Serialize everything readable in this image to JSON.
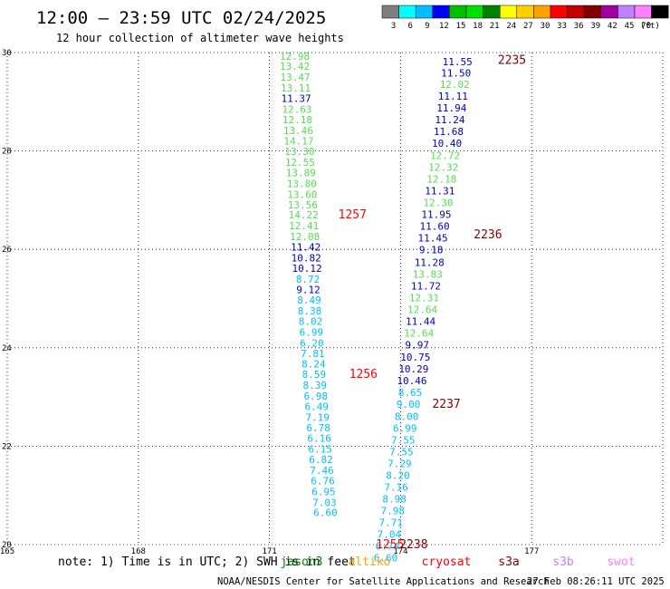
{
  "header": {
    "title": "12:00 — 23:59 UTC 02/24/2025",
    "subtitle": "12 hour collection of altimeter wave heights"
  },
  "legend": {
    "unit": "(ft)",
    "bins": [
      {
        "label": "3",
        "color": "#7f7f7f"
      },
      {
        "label": "6",
        "color": "#00ffff"
      },
      {
        "label": "9",
        "color": "#00bfff"
      },
      {
        "label": "12",
        "color": "#0000ff"
      },
      {
        "label": "15",
        "color": "#00c000"
      },
      {
        "label": "18",
        "color": "#00e000"
      },
      {
        "label": "21",
        "color": "#008000"
      },
      {
        "label": "24",
        "color": "#ffff00"
      },
      {
        "label": "27",
        "color": "#ffd000"
      },
      {
        "label": "30",
        "color": "#ffa000"
      },
      {
        "label": "33",
        "color": "#ff0000"
      },
      {
        "label": "36",
        "color": "#c00000"
      },
      {
        "label": "39",
        "color": "#800000"
      },
      {
        "label": "42",
        "color": "#a000a0"
      },
      {
        "label": "45",
        "color": "#c080ff"
      },
      {
        "label": "70",
        "color": "#ff80ff"
      },
      {
        "label": "",
        "color": "#000000"
      }
    ]
  },
  "satellites": [
    {
      "name": "jason3",
      "color": "#008000"
    },
    {
      "name": "altiko",
      "color": "#ffa000"
    },
    {
      "name": "cryosat",
      "color": "#ff0000"
    },
    {
      "name": "s3a",
      "color": "#800000"
    },
    {
      "name": "s3b",
      "color": "#c080ff"
    },
    {
      "name": "swot",
      "color": "#ff80ff"
    }
  ],
  "footer": {
    "note": "note: 1) Time is in UTC; 2) SWH is in feet",
    "credit": "NOAA/NESDIS Center for Satellite Applications and Research",
    "timestamp": "27 Feb 08:26:11 UTC 2025"
  },
  "chart_data": {
    "type": "scatter",
    "title": "12:00 — 23:59 UTC 02/24/2025",
    "subtitle": "12 hour collection of altimeter wave heights",
    "xlim": [
      165,
      180
    ],
    "ylim": [
      20,
      30
    ],
    "xticks": [
      165,
      168,
      171,
      174,
      177
    ],
    "yticks": [
      20,
      22,
      24,
      26,
      28,
      30
    ],
    "grid": true,
    "colors": {
      "c6": "#00bfff",
      "c9": "#0000c0",
      "c12": "#55dd55",
      "time": "#ff0000",
      "time2": "#800000"
    },
    "series": [
      {
        "name": "cryosat",
        "points": [
          {
            "x": 171.58,
            "y": 29.93,
            "v": "12.98",
            "c": "c12"
          },
          {
            "x": 171.58,
            "y": 29.72,
            "v": "13.42",
            "c": "c12"
          },
          {
            "x": 171.59,
            "y": 29.5,
            "v": "13.47",
            "c": "c12"
          },
          {
            "x": 171.6,
            "y": 29.28,
            "v": "13.11",
            "c": "c12"
          },
          {
            "x": 171.61,
            "y": 29.07,
            "v": "11.37",
            "c": "c9"
          },
          {
            "x": 171.63,
            "y": 28.85,
            "v": "12.63",
            "c": "c12"
          },
          {
            "x": 171.64,
            "y": 28.64,
            "v": "12.18",
            "c": "c12"
          },
          {
            "x": 171.66,
            "y": 28.42,
            "v": "13.46",
            "c": "c12"
          },
          {
            "x": 171.67,
            "y": 28.2,
            "v": "14.17",
            "c": "c12"
          },
          {
            "x": 171.69,
            "y": 27.99,
            "v": "13.30",
            "c": "c12"
          },
          {
            "x": 171.7,
            "y": 27.77,
            "v": "12.55",
            "c": "c12"
          },
          {
            "x": 171.72,
            "y": 27.56,
            "v": "13.89",
            "c": "c12"
          },
          {
            "x": 171.74,
            "y": 27.34,
            "v": "13.80",
            "c": "c12"
          },
          {
            "x": 171.75,
            "y": 27.12,
            "v": "13.60",
            "c": "c12"
          },
          {
            "x": 171.76,
            "y": 26.91,
            "v": "13.56",
            "c": "c12"
          },
          {
            "x": 171.78,
            "y": 26.7,
            "v": "14.22",
            "c": "c12"
          },
          {
            "x": 171.79,
            "y": 26.48,
            "v": "12.41",
            "c": "c12"
          },
          {
            "x": 171.81,
            "y": 26.26,
            "v": "12.08",
            "c": "c12"
          },
          {
            "x": 171.83,
            "y": 26.05,
            "v": "11.42",
            "c": "c9"
          },
          {
            "x": 171.84,
            "y": 25.83,
            "v": "10.82",
            "c": "c9"
          },
          {
            "x": 171.86,
            "y": 25.62,
            "v": "10.12",
            "c": "c9"
          },
          {
            "x": 171.88,
            "y": 25.4,
            "v": "8.72",
            "c": "c6"
          },
          {
            "x": 171.89,
            "y": 25.18,
            "v": "9.12",
            "c": "c9"
          },
          {
            "x": 171.91,
            "y": 24.97,
            "v": "8.49",
            "c": "c6"
          },
          {
            "x": 171.92,
            "y": 24.75,
            "v": "8.38",
            "c": "c6"
          },
          {
            "x": 171.94,
            "y": 24.54,
            "v": "8.02",
            "c": "c6"
          },
          {
            "x": 171.96,
            "y": 24.32,
            "v": "6.99",
            "c": "c6"
          },
          {
            "x": 171.97,
            "y": 24.1,
            "v": "6.20",
            "c": "c6"
          },
          {
            "x": 171.99,
            "y": 23.89,
            "v": "7.81",
            "c": "c6"
          },
          {
            "x": 172.01,
            "y": 23.67,
            "v": "8.24",
            "c": "c6"
          },
          {
            "x": 172.02,
            "y": 23.46,
            "v": "8.59",
            "c": "c6"
          },
          {
            "x": 172.04,
            "y": 23.24,
            "v": "8.39",
            "c": "c6"
          },
          {
            "x": 172.06,
            "y": 23.02,
            "v": "6.98",
            "c": "c6"
          },
          {
            "x": 172.08,
            "y": 22.81,
            "v": "6.49",
            "c": "c6"
          },
          {
            "x": 172.1,
            "y": 22.59,
            "v": "7.19",
            "c": "c6"
          },
          {
            "x": 172.12,
            "y": 22.38,
            "v": "6.78",
            "c": "c6"
          },
          {
            "x": 172.14,
            "y": 22.16,
            "v": "6.16",
            "c": "c6"
          },
          {
            "x": 172.16,
            "y": 21.94,
            "v": "6.15",
            "c": "c6"
          },
          {
            "x": 172.18,
            "y": 21.73,
            "v": "6.82",
            "c": "c6"
          },
          {
            "x": 172.2,
            "y": 21.51,
            "v": "7.46",
            "c": "c6"
          },
          {
            "x": 172.22,
            "y": 21.3,
            "v": "6.76",
            "c": "c6"
          },
          {
            "x": 172.24,
            "y": 21.08,
            "v": "6.95",
            "c": "c6"
          },
          {
            "x": 172.26,
            "y": 20.86,
            "v": "7.03",
            "c": "c6"
          },
          {
            "x": 172.28,
            "y": 20.65,
            "v": "6.60",
            "c": "c6"
          }
        ]
      },
      {
        "name": "s3a",
        "points": [
          {
            "x": 175.3,
            "y": 29.82,
            "v": "11.55",
            "c": "c9"
          },
          {
            "x": 175.27,
            "y": 29.59,
            "v": "11.50",
            "c": "c9"
          },
          {
            "x": 175.24,
            "y": 29.36,
            "v": "12.02",
            "c": "c12"
          },
          {
            "x": 175.2,
            "y": 29.12,
            "v": "11.11",
            "c": "c9"
          },
          {
            "x": 175.17,
            "y": 28.88,
            "v": "11.94",
            "c": "c9"
          },
          {
            "x": 175.13,
            "y": 28.64,
            "v": "11.24",
            "c": "c9"
          },
          {
            "x": 175.1,
            "y": 28.4,
            "v": "11.68",
            "c": "c9"
          },
          {
            "x": 175.06,
            "y": 28.16,
            "v": "10.40",
            "c": "c9"
          },
          {
            "x": 175.02,
            "y": 27.91,
            "v": "12.72",
            "c": "c12"
          },
          {
            "x": 174.98,
            "y": 27.67,
            "v": "12.32",
            "c": "c12"
          },
          {
            "x": 174.94,
            "y": 27.43,
            "v": "12.18",
            "c": "c12"
          },
          {
            "x": 174.9,
            "y": 27.19,
            "v": "11.31",
            "c": "c9"
          },
          {
            "x": 174.86,
            "y": 26.95,
            "v": "12.30",
            "c": "c12"
          },
          {
            "x": 174.82,
            "y": 26.71,
            "v": "11.95",
            "c": "c9"
          },
          {
            "x": 174.78,
            "y": 26.47,
            "v": "11.60",
            "c": "c9"
          },
          {
            "x": 174.74,
            "y": 26.23,
            "v": "11.45",
            "c": "c9"
          },
          {
            "x": 174.7,
            "y": 25.99,
            "v": "9.18",
            "c": "c9"
          },
          {
            "x": 174.66,
            "y": 25.74,
            "v": "11.28",
            "c": "c9"
          },
          {
            "x": 174.62,
            "y": 25.5,
            "v": "13.83",
            "c": "c12"
          },
          {
            "x": 174.58,
            "y": 25.26,
            "v": "11.72",
            "c": "c9"
          },
          {
            "x": 174.54,
            "y": 25.02,
            "v": "12.31",
            "c": "c12"
          },
          {
            "x": 174.5,
            "y": 24.78,
            "v": "12.64",
            "c": "c12"
          },
          {
            "x": 174.46,
            "y": 24.54,
            "v": "11.44",
            "c": "c9"
          },
          {
            "x": 174.42,
            "y": 24.3,
            "v": "12.64",
            "c": "c12"
          },
          {
            "x": 174.38,
            "y": 24.06,
            "v": "9.97",
            "c": "c9"
          },
          {
            "x": 174.34,
            "y": 23.81,
            "v": "10.75",
            "c": "c9"
          },
          {
            "x": 174.3,
            "y": 23.57,
            "v": "10.29",
            "c": "c9"
          },
          {
            "x": 174.26,
            "y": 23.33,
            "v": "10.46",
            "c": "c9"
          },
          {
            "x": 174.22,
            "y": 23.09,
            "v": "8.65",
            "c": "c6"
          },
          {
            "x": 174.18,
            "y": 22.85,
            "v": "9.00",
            "c": "c6"
          },
          {
            "x": 174.14,
            "y": 22.61,
            "v": "8.00",
            "c": "c6"
          },
          {
            "x": 174.1,
            "y": 22.37,
            "v": "6.99",
            "c": "c6"
          },
          {
            "x": 174.06,
            "y": 22.13,
            "v": "7.55",
            "c": "c6"
          },
          {
            "x": 174.02,
            "y": 21.89,
            "v": "7.55",
            "c": "c6"
          },
          {
            "x": 173.98,
            "y": 21.65,
            "v": "7.29",
            "c": "c6"
          },
          {
            "x": 173.94,
            "y": 21.41,
            "v": "8.20",
            "c": "c6"
          },
          {
            "x": 173.9,
            "y": 21.17,
            "v": "7.16",
            "c": "c6"
          },
          {
            "x": 173.86,
            "y": 20.93,
            "v": "8.98",
            "c": "c6"
          },
          {
            "x": 173.82,
            "y": 20.69,
            "v": "7.98",
            "c": "c6"
          },
          {
            "x": 173.78,
            "y": 20.45,
            "v": "7.71",
            "c": "c6"
          },
          {
            "x": 173.74,
            "y": 20.21,
            "v": "7.04",
            "c": "c6"
          },
          {
            "x": 173.7,
            "y": 19.97,
            "v": "6.74",
            "c": "c6"
          },
          {
            "x": 173.66,
            "y": 19.73,
            "v": "6.60",
            "c": "c6"
          }
        ]
      }
    ],
    "time_labels": [
      {
        "x": 172.9,
        "y": 26.7,
        "v": "1257",
        "c": "time"
      },
      {
        "x": 173.15,
        "y": 23.46,
        "v": "1256",
        "c": "time"
      },
      {
        "x": 173.76,
        "y": 20.0,
        "v": "1255",
        "c": "time"
      },
      {
        "x": 176.55,
        "y": 29.84,
        "v": "2235",
        "c": "time2"
      },
      {
        "x": 176.0,
        "y": 26.3,
        "v": "2236",
        "c": "time2"
      },
      {
        "x": 175.05,
        "y": 22.85,
        "v": "2237",
        "c": "time2"
      },
      {
        "x": 174.3,
        "y": 20.0,
        "v": "2238",
        "c": "time2"
      }
    ]
  }
}
